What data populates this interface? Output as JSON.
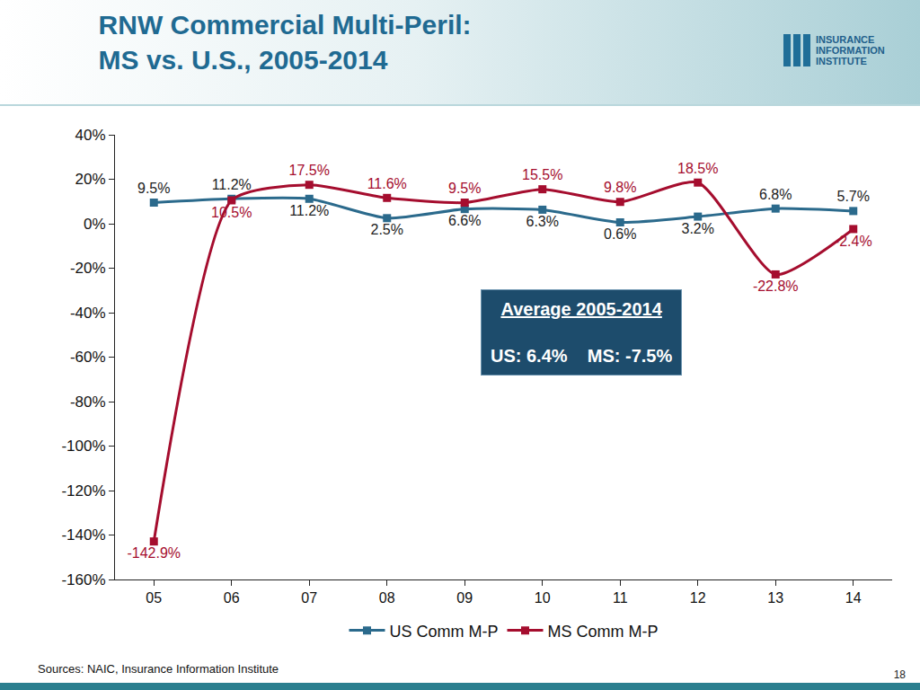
{
  "chart_data": {
    "type": "line",
    "title": "RNW Commercial Multi-Peril:\nMS vs. U.S., 2005-2014",
    "categories": [
      "05",
      "06",
      "07",
      "08",
      "09",
      "10",
      "11",
      "12",
      "13",
      "14"
    ],
    "series": [
      {
        "name": "US Comm M-P",
        "color": "#2b6a8c",
        "marker": "square",
        "line_style": "solid",
        "values": [
          9.5,
          11.2,
          11.2,
          2.5,
          6.6,
          6.3,
          0.6,
          3.2,
          6.8,
          5.7
        ],
        "value_labels": [
          "9.5%",
          "11.2%",
          "11.2%",
          "2.5%",
          "6.6%",
          "6.3%",
          "0.6%",
          "3.2%",
          "6.8%",
          "5.7%"
        ]
      },
      {
        "name": "MS Comm M-P",
        "color": "#a50d2e",
        "marker": "square",
        "line_style": "solid",
        "values": [
          -142.9,
          10.5,
          17.5,
          11.6,
          9.5,
          15.5,
          9.8,
          18.5,
          -22.8,
          -2.4
        ],
        "value_labels": [
          "-142.9%",
          "10.5%",
          "17.5%",
          "11.6%",
          "9.5%",
          "15.5%",
          "9.8%",
          "18.5%",
          "-22.8%",
          "-2.4%"
        ]
      }
    ],
    "ylim": [
      -160,
      40
    ],
    "yticks": [
      {
        "value": -160,
        "label": "-160%"
      },
      {
        "value": -140,
        "label": "-140%"
      },
      {
        "value": -120,
        "label": "-120%"
      },
      {
        "value": -100,
        "label": "-100%"
      },
      {
        "value": -80,
        "label": "-80%"
      },
      {
        "value": -60,
        "label": "-60%"
      },
      {
        "value": -40,
        "label": "-40%"
      },
      {
        "value": -20,
        "label": "-20%"
      },
      {
        "value": 0,
        "label": "0%"
      },
      {
        "value": 20,
        "label": "20%"
      },
      {
        "value": 40,
        "label": "40%"
      }
    ],
    "grid": false,
    "legend": "bottom",
    "data_labels": true,
    "annotations": [
      "Average 2005-2014",
      "US: 6.4%    MS: -7.5%"
    ],
    "source": "Sources: NAIC, Insurance Information Institute",
    "logo": [
      "INSURANCE",
      "INFORMATION",
      "INSTITUTE"
    ],
    "page_number": "18"
  }
}
